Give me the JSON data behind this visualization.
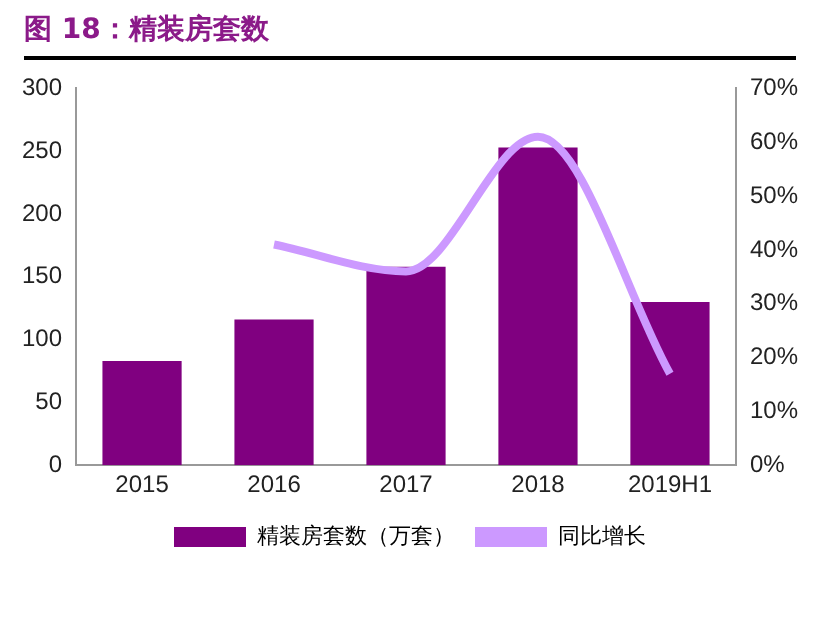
{
  "chart_data": {
    "type": "bar",
    "title": "图 18：精装房套数",
    "categories": [
      "2015",
      "2016",
      "2017",
      "2018",
      "2019H1"
    ],
    "series": [
      {
        "name": "精装房套数（万套）",
        "color": "#800080",
        "values": [
          83,
          116,
          158,
          253,
          130
        ]
      },
      {
        "name": "同比增长",
        "type": "line",
        "axis": "y2",
        "color": "#cc99ff",
        "values": [
          null,
          41,
          36,
          61,
          17
        ]
      }
    ],
    "ylim": [
      0,
      300
    ],
    "yticks": [
      0,
      50,
      100,
      150,
      200,
      250,
      300
    ],
    "y2lim": [
      0,
      70
    ],
    "y2ticks": [
      {
        "value": 0,
        "label": "0%"
      },
      {
        "value": 10,
        "label": "10%"
      },
      {
        "value": 20,
        "label": "20%"
      },
      {
        "value": 30,
        "label": "30%"
      },
      {
        "value": 40,
        "label": "40%"
      },
      {
        "value": 50,
        "label": "50%"
      },
      {
        "value": 60,
        "label": "60%"
      },
      {
        "value": 70,
        "label": "70%"
      }
    ],
    "grid": false,
    "legend": "bottom",
    "marker": "none"
  }
}
